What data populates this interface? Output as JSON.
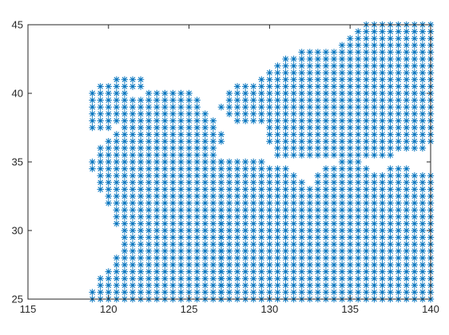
{
  "chart_data": {
    "type": "scatter",
    "title": "",
    "xlabel": "",
    "ylabel": "",
    "xlim": [
      115,
      140
    ],
    "ylim": [
      25,
      45
    ],
    "xticks": [
      115,
      120,
      125,
      130,
      135,
      140
    ],
    "yticks": [
      25,
      30,
      35,
      40,
      45
    ],
    "grid": false,
    "legend": "none",
    "marker": "asterisk",
    "marker_color": "#0072bd",
    "grid_step": 0.5,
    "series": [
      {
        "rows": [
          {
            "y": 41.0,
            "ranges": [
              [
                120.5,
                122.0
              ]
            ]
          },
          {
            "y": 40.5,
            "ranges": [
              [
                119.5,
                122.0
              ]
            ]
          },
          {
            "y": 40.0,
            "ranges": [
              [
                119.0,
                121.0
              ],
              [
                122.5,
                125.0
              ]
            ]
          },
          {
            "y": 39.5,
            "ranges": [
              [
                119.0,
                125.5
              ]
            ]
          },
          {
            "y": 39.0,
            "ranges": [
              [
                119.0,
                125.5
              ]
            ]
          },
          {
            "y": 38.5,
            "ranges": [
              [
                119.0,
                126.0
              ]
            ]
          },
          {
            "y": 38.0,
            "ranges": [
              [
                119.0,
                126.5
              ]
            ]
          },
          {
            "y": 37.5,
            "ranges": [
              [
                119.0,
                120.0
              ],
              [
                121.0,
                126.5
              ]
            ]
          },
          {
            "y": 37.0,
            "ranges": [
              [
                120.5,
                127.0
              ]
            ]
          },
          {
            "y": 36.5,
            "ranges": [
              [
                120.0,
                127.0
              ]
            ]
          },
          {
            "y": 36.0,
            "ranges": [
              [
                119.5,
                126.5
              ]
            ]
          },
          {
            "y": 35.5,
            "ranges": [
              [
                119.5,
                126.5
              ]
            ]
          },
          {
            "y": 35.0,
            "ranges": [
              [
                119.0,
                127.0
              ]
            ]
          },
          {
            "y": 34.5,
            "ranges": [
              [
                119.0,
                126.5
              ]
            ]
          },
          {
            "y": 34.0,
            "ranges": [
              [
                119.5,
                126.5
              ]
            ]
          },
          {
            "y": 33.5,
            "ranges": [
              [
                119.5,
                126.5
              ]
            ]
          },
          {
            "y": 33.0,
            "ranges": [
              [
                119.5,
                126.5
              ]
            ]
          },
          {
            "y": 32.5,
            "ranges": [
              [
                120.0,
                126.5
              ]
            ]
          },
          {
            "y": 32.0,
            "ranges": [
              [
                120.0,
                126.5
              ]
            ]
          },
          {
            "y": 31.5,
            "ranges": [
              [
                120.5,
                126.5
              ]
            ]
          },
          {
            "y": 31.0,
            "ranges": [
              [
                120.5,
                127.0
              ]
            ]
          },
          {
            "y": 30.5,
            "ranges": [
              [
                120.5,
                127.0
              ]
            ]
          },
          {
            "y": 30.0,
            "ranges": [
              [
                121.0,
                127.0
              ]
            ]
          },
          {
            "y": 29.5,
            "ranges": [
              [
                121.0,
                127.0
              ]
            ]
          },
          {
            "y": 29.0,
            "ranges": [
              [
                121.0,
                127.0
              ]
            ]
          },
          {
            "y": 28.5,
            "ranges": [
              [
                121.0,
                127.0
              ]
            ]
          },
          {
            "y": 28.0,
            "ranges": [
              [
                120.5,
                127.0
              ]
            ]
          },
          {
            "y": 27.5,
            "ranges": [
              [
                120.5,
                127.0
              ]
            ]
          },
          {
            "y": 27.0,
            "ranges": [
              [
                120.0,
                127.0
              ]
            ]
          },
          {
            "y": 26.5,
            "ranges": [
              [
                119.5,
                127.0
              ]
            ]
          },
          {
            "y": 26.0,
            "ranges": [
              [
                119.5,
                127.0
              ]
            ]
          },
          {
            "y": 25.5,
            "ranges": [
              [
                119.0,
                127.0
              ]
            ]
          },
          {
            "y": 25.0,
            "ranges": [
              [
                119.0,
                127.0
              ]
            ]
          }
        ]
      },
      {
        "rows": [
          {
            "y": 45.0,
            "ranges": [
              [
                136.0,
                140.0
              ]
            ]
          },
          {
            "y": 44.5,
            "ranges": [
              [
                135.5,
                140.0
              ]
            ]
          },
          {
            "y": 44.0,
            "ranges": [
              [
                135.0,
                140.0
              ]
            ]
          },
          {
            "y": 43.5,
            "ranges": [
              [
                134.5,
                140.0
              ]
            ]
          },
          {
            "y": 43.0,
            "ranges": [
              [
                132.0,
                140.0
              ]
            ]
          },
          {
            "y": 42.5,
            "ranges": [
              [
                131.0,
                140.0
              ]
            ]
          },
          {
            "y": 42.0,
            "ranges": [
              [
                130.5,
                140.0
              ]
            ]
          },
          {
            "y": 41.5,
            "ranges": [
              [
                130.0,
                140.0
              ]
            ]
          },
          {
            "y": 41.0,
            "ranges": [
              [
                129.5,
                140.0
              ]
            ]
          },
          {
            "y": 40.5,
            "ranges": [
              [
                128.0,
                140.0
              ]
            ]
          },
          {
            "y": 40.0,
            "ranges": [
              [
                127.5,
                140.0
              ]
            ]
          },
          {
            "y": 39.5,
            "ranges": [
              [
                127.5,
                140.0
              ]
            ]
          },
          {
            "y": 39.0,
            "ranges": [
              [
                127.0,
                140.0
              ]
            ]
          },
          {
            "y": 38.5,
            "ranges": [
              [
                127.5,
                140.0
              ]
            ]
          },
          {
            "y": 38.0,
            "ranges": [
              [
                128.0,
                140.0
              ]
            ]
          },
          {
            "y": 37.5,
            "ranges": [
              [
                130.0,
                140.0
              ]
            ]
          },
          {
            "y": 37.0,
            "ranges": [
              [
                130.0,
                140.0
              ]
            ]
          },
          {
            "y": 36.5,
            "ranges": [
              [
                130.0,
                140.0
              ]
            ]
          },
          {
            "y": 36.0,
            "ranges": [
              [
                130.5,
                139.5
              ]
            ]
          },
          {
            "y": 35.5,
            "ranges": [
              [
                130.5,
                137.5
              ]
            ]
          }
        ]
      },
      {
        "rows": [
          {
            "y": 35.0,
            "ranges": [
              [
                127.0,
                129.5
              ],
              [
                134.5,
                135.5
              ]
            ]
          },
          {
            "y": 34.5,
            "ranges": [
              [
                127.0,
                131.0
              ],
              [
                133.5,
                136.0
              ],
              [
                137.5,
                138.5
              ]
            ]
          },
          {
            "y": 34.0,
            "ranges": [
              [
                127.0,
                131.5
              ],
              [
                133.0,
                140.0
              ]
            ]
          },
          {
            "y": 33.5,
            "ranges": [
              [
                127.0,
                132.0
              ],
              [
                133.0,
                140.0
              ]
            ]
          },
          {
            "y": 33.0,
            "ranges": [
              [
                127.0,
                140.0
              ]
            ]
          },
          {
            "y": 32.5,
            "ranges": [
              [
                127.0,
                140.0
              ]
            ]
          },
          {
            "y": 32.0,
            "ranges": [
              [
                127.0,
                140.0
              ]
            ]
          },
          {
            "y": 31.5,
            "ranges": [
              [
                127.0,
                140.0
              ]
            ]
          },
          {
            "y": 31.0,
            "ranges": [
              [
                127.0,
                140.0
              ]
            ]
          },
          {
            "y": 30.5,
            "ranges": [
              [
                127.0,
                140.0
              ]
            ]
          },
          {
            "y": 30.0,
            "ranges": [
              [
                127.0,
                140.0
              ]
            ]
          },
          {
            "y": 29.5,
            "ranges": [
              [
                127.0,
                140.0
              ]
            ]
          },
          {
            "y": 29.0,
            "ranges": [
              [
                127.0,
                140.0
              ]
            ]
          },
          {
            "y": 28.5,
            "ranges": [
              [
                127.0,
                140.0
              ]
            ]
          },
          {
            "y": 28.0,
            "ranges": [
              [
                127.0,
                140.0
              ]
            ]
          },
          {
            "y": 27.5,
            "ranges": [
              [
                127.0,
                140.0
              ]
            ]
          },
          {
            "y": 27.0,
            "ranges": [
              [
                127.0,
                140.0
              ]
            ]
          },
          {
            "y": 26.5,
            "ranges": [
              [
                127.0,
                140.0
              ]
            ]
          },
          {
            "y": 26.0,
            "ranges": [
              [
                127.0,
                140.0
              ]
            ]
          },
          {
            "y": 25.5,
            "ranges": [
              [
                127.0,
                140.0
              ]
            ]
          },
          {
            "y": 25.0,
            "ranges": [
              [
                127.0,
                140.0
              ]
            ]
          }
        ]
      }
    ]
  }
}
